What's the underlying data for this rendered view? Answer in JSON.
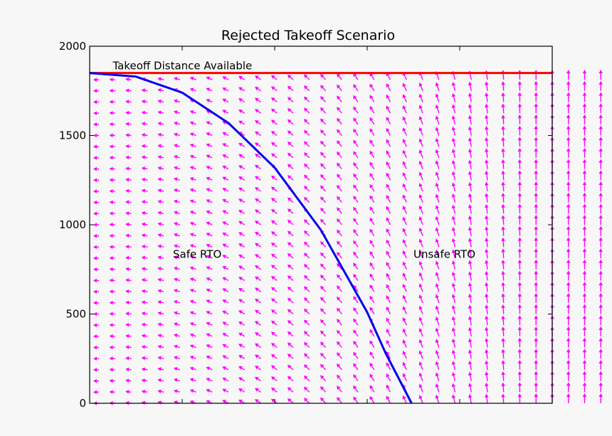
{
  "chart_data": {
    "type": "quiver",
    "title": "Rejected Takeoff Scenario",
    "xlabel": "",
    "ylabel": "",
    "xlim": [
      0,
      5
    ],
    "ylim": [
      0,
      2000
    ],
    "yticks": [
      0,
      500,
      1000,
      1500,
      2000
    ],
    "ytick_labels": [
      "0",
      "500",
      "1000",
      "1500",
      "2000"
    ],
    "xticks": [
      1,
      2,
      3,
      4
    ],
    "xtick_labels": [],
    "grid": false,
    "legend": "none",
    "takeoff_distance_available": 1850,
    "boundary_curve": {
      "x": [
        0,
        0.5,
        1.0,
        1.5,
        2.0,
        2.5,
        3.0,
        3.2,
        3.48
      ],
      "y": [
        1850,
        1830,
        1740,
        1570,
        1320,
        970,
        510,
        280,
        0
      ]
    },
    "vector_field": {
      "x_start": 0.1,
      "x_step": 0.175,
      "x_count": 36,
      "y_start": 0,
      "y_step": 62.5,
      "y_count": 30
    },
    "annotations": [
      {
        "text": "Takeoff Distance Available",
        "x": 0.25,
        "y": 1870
      },
      {
        "text": "Safe RTO",
        "x": 0.9,
        "y": 815
      },
      {
        "text": "Unsafe RTO",
        "x": 3.5,
        "y": 815
      }
    ],
    "colors": {
      "tda_line": "#ff0000",
      "boundary": "#0000ee",
      "arrows": "#ff00ff"
    }
  }
}
